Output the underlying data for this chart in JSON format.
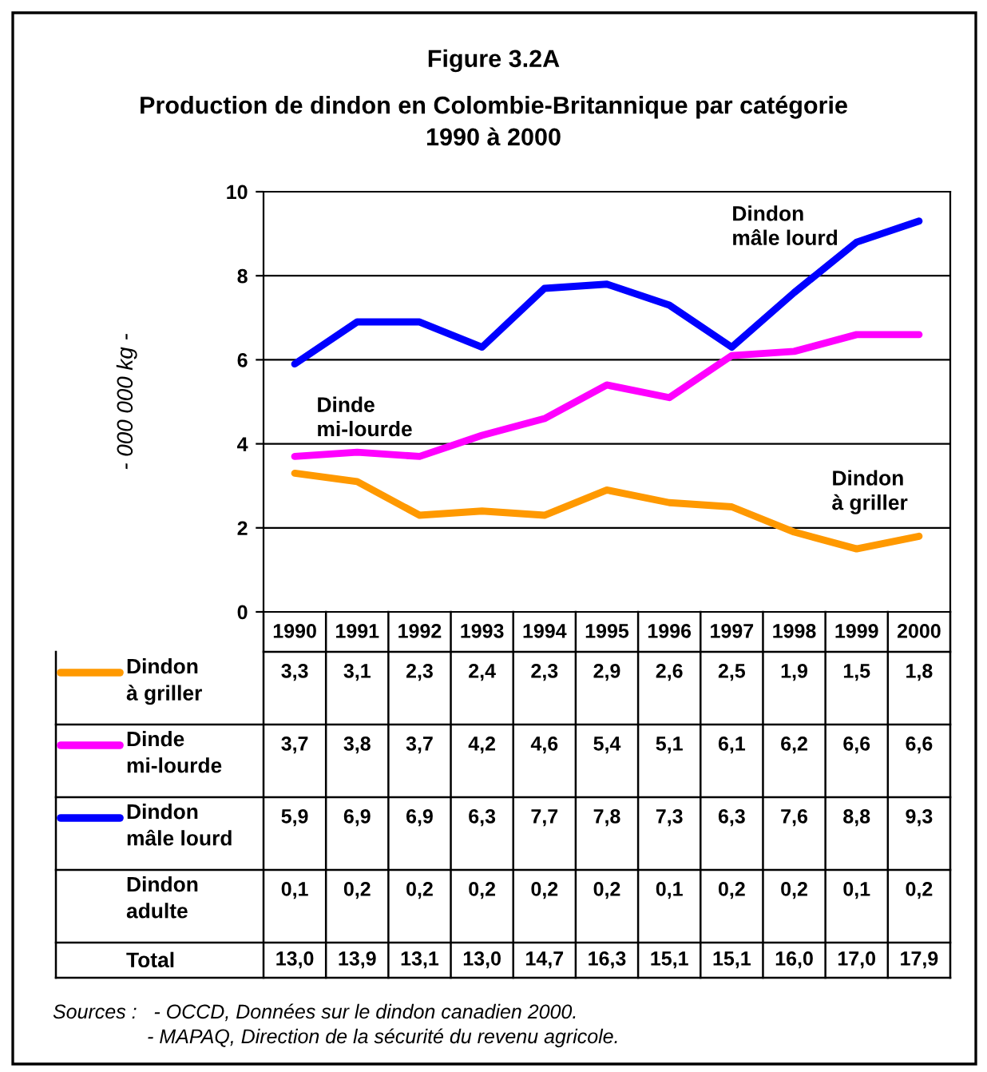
{
  "chart_data": {
    "type": "line",
    "title": "Figure 3.2A",
    "subtitle": "Production de dindon en Colombie-Britannique par catégorie\n1990 à 2000",
    "ylabel": "- 000 000 kg -",
    "categories": [
      "1990",
      "1991",
      "1992",
      "1993",
      "1994",
      "1995",
      "1996",
      "1997",
      "1998",
      "1999",
      "2000"
    ],
    "series": [
      {
        "name": "Dindon\nà griller",
        "color": "#ff9900",
        "values": [
          3.3,
          3.1,
          2.3,
          2.4,
          2.3,
          2.9,
          2.6,
          2.5,
          1.9,
          1.5,
          1.8
        ],
        "value_labels": [
          "3,3",
          "3,1",
          "2,3",
          "2,4",
          "2,3",
          "2,9",
          "2,6",
          "2,5",
          "1,9",
          "1,5",
          "1,8"
        ]
      },
      {
        "name": "Dinde\nmi-lourde",
        "color": "#ff00ff",
        "values": [
          3.7,
          3.8,
          3.7,
          4.2,
          4.6,
          5.4,
          5.1,
          6.1,
          6.2,
          6.6,
          6.6
        ],
        "value_labels": [
          "3,7",
          "3,8",
          "3,7",
          "4,2",
          "4,6",
          "5,4",
          "5,1",
          "6,1",
          "6,2",
          "6,6",
          "6,6"
        ]
      },
      {
        "name": "Dindon\nmâle lourd",
        "color": "#0000ff",
        "values": [
          5.9,
          6.9,
          6.9,
          6.3,
          7.7,
          7.8,
          7.3,
          6.3,
          7.6,
          8.8,
          9.3
        ],
        "value_labels": [
          "5,9",
          "6,9",
          "6,9",
          "6,3",
          "7,7",
          "7,8",
          "7,3",
          "6,3",
          "7,6",
          "8,8",
          "9,3"
        ]
      }
    ],
    "totals": [
      "13,0",
      "13,9",
      "13,1",
      "13,0",
      "14,7",
      "16,3",
      "15,1",
      "15,1",
      "16,0",
      "17,0",
      "17,9"
    ],
    "ylim": [
      0,
      10
    ],
    "yticks": [
      0,
      2,
      4,
      6,
      8,
      10
    ],
    "grid": "y",
    "tick_labels": "y",
    "legend": "bottom",
    "marker": "none",
    "line_style": "solid",
    "annotations": [
      "Dindon\nmâle lourd",
      "Dinde\nmi-lourde",
      "Dindon\nà griller",
      "Dindon\nadulte",
      "0,1",
      "0,2",
      "0,2",
      "0,2",
      "0,2",
      "0,2",
      "0,1",
      "0,2",
      "0,2",
      "0,1",
      "0,2",
      "Total",
      "Sources :   - OCCD, Données sur le dindon canadien 2000.\n                 - MAPAQ, Direction de la sécurité du revenu agricole."
    ]
  }
}
